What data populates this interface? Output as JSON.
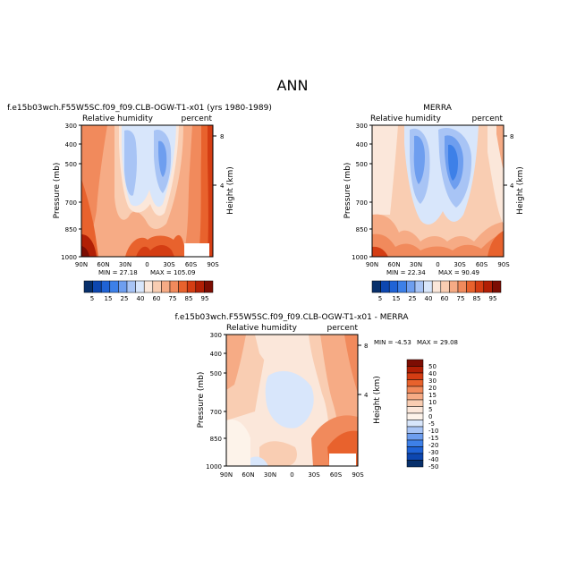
{
  "page_title": "ANN",
  "units_label": "percent",
  "variable_label": "Relative humidity",
  "y_axis_label": "Pressure (mb)",
  "y2_axis_label": "Height (km)",
  "chart_data": [
    {
      "type": "heatmap",
      "title": "f.e15b03wch.F55W5SC.f09_f09.CLB-OGW-T1-x01 (yrs 1980-1989)",
      "variable": "Relative humidity",
      "units": "percent",
      "x_ticks": [
        "90N",
        "60N",
        "30N",
        "0",
        "30S",
        "60S",
        "90S"
      ],
      "y_ticks": [
        "300",
        "400",
        "500",
        "700",
        "850",
        "1000"
      ],
      "y2_ticks": [
        "8",
        "4"
      ],
      "ylim": [
        1000,
        300
      ],
      "min_label": "MIN = 27.18",
      "max_label": "MAX = 105.09",
      "min": 27.18,
      "max": 105.09,
      "colorbar": {
        "levels": [
          "5",
          "15",
          "25",
          "40",
          "60",
          "75",
          "85",
          "95"
        ]
      }
    },
    {
      "type": "heatmap",
      "title": "MERRA",
      "variable": "Relative humidity",
      "units": "percent",
      "x_ticks": [
        "90N",
        "60N",
        "30N",
        "0",
        "30S",
        "60S",
        "90S"
      ],
      "y_ticks": [
        "300",
        "400",
        "500",
        "700",
        "850",
        "1000"
      ],
      "y2_ticks": [
        "8",
        "4"
      ],
      "ylim": [
        1000,
        300
      ],
      "min_label": "MIN = 22.34",
      "max_label": "MAX = 90.49",
      "min": 22.34,
      "max": 90.49,
      "colorbar": {
        "levels": [
          "5",
          "15",
          "25",
          "40",
          "60",
          "75",
          "85",
          "95"
        ]
      }
    },
    {
      "type": "heatmap",
      "title": "f.e15b03wch.F55W5SC.f09_f09.CLB-OGW-T1-x01 - MERRA",
      "variable": "Relative humidity",
      "units": "percent",
      "x_ticks": [
        "90N",
        "60N",
        "30N",
        "0",
        "30S",
        "60S",
        "90S"
      ],
      "y_ticks": [
        "300",
        "400",
        "500",
        "700",
        "850",
        "1000"
      ],
      "y2_ticks": [
        "8",
        "4"
      ],
      "ylim": [
        1000,
        300
      ],
      "min_label": "MIN = -4.53",
      "max_label": "MAX = 29.08",
      "min": -4.53,
      "max": 29.08,
      "colorbar": {
        "levels": [
          "50",
          "40",
          "30",
          "20",
          "15",
          "10",
          "5",
          "0",
          "-5",
          "-10",
          "-15",
          "-20",
          "-30",
          "-40",
          "-50"
        ]
      }
    }
  ],
  "colors": {
    "rh_scale": [
      "#08306b",
      "#0d47b0",
      "#1f63d6",
      "#3d80e8",
      "#6e9eef",
      "#a8c4f5",
      "#d8e6fb",
      "#fbe7da",
      "#f9cdb2",
      "#f6ab85",
      "#f18a5c",
      "#e8622d",
      "#d43d13",
      "#b11f05",
      "#7c0d03"
    ],
    "diff_scale": [
      "#7c0d03",
      "#b11f05",
      "#d43d13",
      "#e8622d",
      "#f18a5c",
      "#f6ab85",
      "#f9cdb2",
      "#fbe7da",
      "#fdf3ea",
      "#d8e6fb",
      "#a8c4f5",
      "#6e9eef",
      "#3d80e8",
      "#1f63d6",
      "#0d47b0",
      "#08306b"
    ]
  }
}
